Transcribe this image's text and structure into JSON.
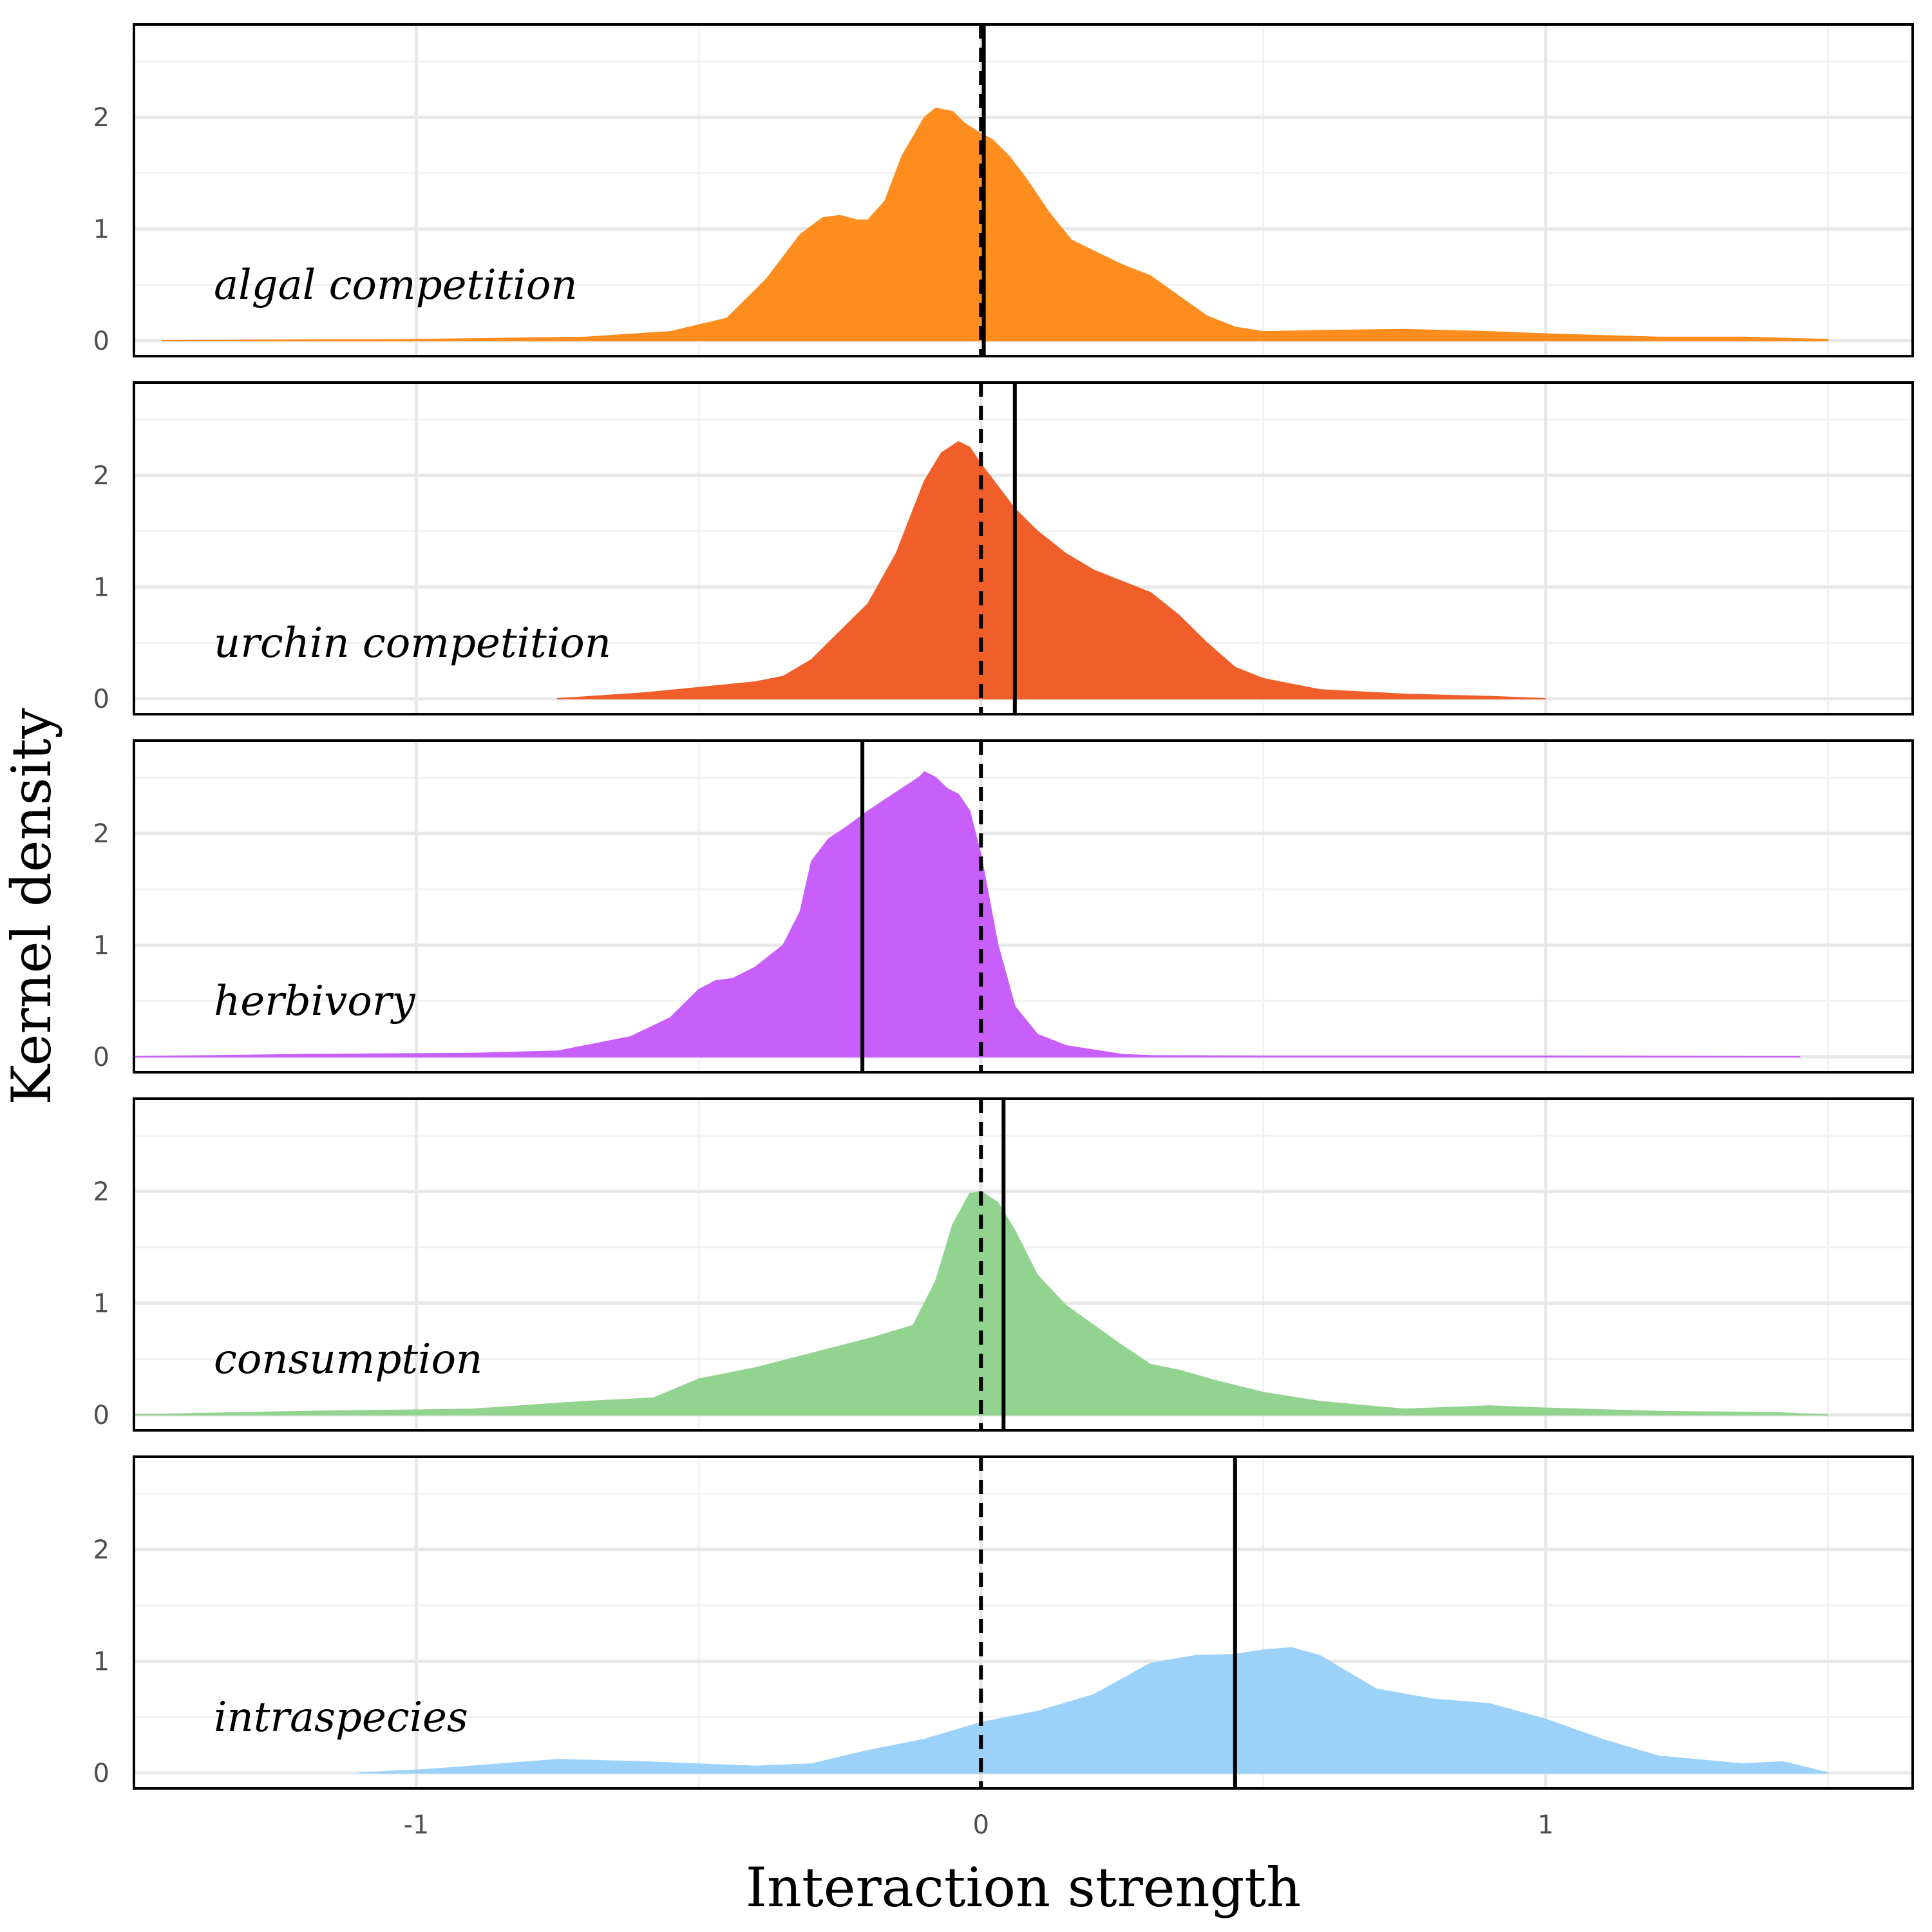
{
  "chart_data": {
    "type": "area",
    "xlabel": "Interaction strength",
    "ylabel": "Kernel density",
    "xlim": [
      -1.5,
      1.65
    ],
    "ylim": [
      0,
      2.75
    ],
    "x_ticks": [
      -1,
      0,
      1
    ],
    "x_tick_labels": [
      "-1",
      "0",
      "1"
    ],
    "y_ticks": [
      0,
      1,
      2
    ],
    "y_tick_labels": [
      "0",
      "1",
      "2"
    ],
    "grid": true,
    "reference_line": {
      "x": 0,
      "style": "dashed"
    },
    "panels": [
      {
        "name": "algal competition",
        "color": "#fd8d1f",
        "mean": 0.005,
        "x": [
          -1.45,
          -1.0,
          -0.7,
          -0.55,
          -0.45,
          -0.38,
          -0.32,
          -0.28,
          -0.25,
          -0.22,
          -0.2,
          -0.17,
          -0.14,
          -0.1,
          -0.08,
          -0.05,
          -0.03,
          0.0,
          0.02,
          0.05,
          0.08,
          0.12,
          0.16,
          0.2,
          0.25,
          0.3,
          0.35,
          0.4,
          0.45,
          0.5,
          0.6,
          0.75,
          0.9,
          1.0,
          1.2,
          1.35,
          1.5
        ],
        "y": [
          0.0,
          0.01,
          0.03,
          0.08,
          0.2,
          0.55,
          0.95,
          1.1,
          1.12,
          1.08,
          1.08,
          1.25,
          1.65,
          2.0,
          2.08,
          2.05,
          1.95,
          1.85,
          1.8,
          1.65,
          1.45,
          1.15,
          0.9,
          0.8,
          0.68,
          0.58,
          0.4,
          0.22,
          0.12,
          0.08,
          0.09,
          0.1,
          0.08,
          0.06,
          0.03,
          0.03,
          0.01
        ]
      },
      {
        "name": "urchin competition",
        "color": "#f05f2a",
        "mean": 0.06,
        "x": [
          -0.75,
          -0.6,
          -0.5,
          -0.4,
          -0.35,
          -0.3,
          -0.25,
          -0.2,
          -0.15,
          -0.1,
          -0.07,
          -0.04,
          -0.02,
          0.0,
          0.03,
          0.06,
          0.1,
          0.15,
          0.2,
          0.3,
          0.35,
          0.4,
          0.45,
          0.5,
          0.6,
          0.75,
          0.9,
          1.0
        ],
        "y": [
          0.0,
          0.05,
          0.1,
          0.15,
          0.2,
          0.35,
          0.6,
          0.85,
          1.3,
          1.95,
          2.2,
          2.3,
          2.25,
          2.1,
          1.9,
          1.7,
          1.5,
          1.3,
          1.15,
          0.95,
          0.75,
          0.5,
          0.28,
          0.18,
          0.08,
          0.04,
          0.02,
          0.0
        ]
      },
      {
        "name": "herbivory",
        "color": "#c85ffb",
        "mean": -0.21,
        "x": [
          -1.5,
          -1.2,
          -0.9,
          -0.75,
          -0.68,
          -0.62,
          -0.55,
          -0.5,
          -0.47,
          -0.44,
          -0.4,
          -0.35,
          -0.32,
          -0.3,
          -0.27,
          -0.24,
          -0.2,
          -0.17,
          -0.14,
          -0.11,
          -0.1,
          -0.08,
          -0.06,
          -0.04,
          -0.02,
          0.0,
          0.03,
          0.06,
          0.1,
          0.15,
          0.25,
          0.3,
          0.5,
          1.0,
          1.45
        ],
        "y": [
          0.0,
          0.02,
          0.03,
          0.05,
          0.12,
          0.18,
          0.35,
          0.6,
          0.68,
          0.7,
          0.8,
          1.0,
          1.3,
          1.75,
          1.95,
          2.05,
          2.2,
          2.3,
          2.4,
          2.5,
          2.55,
          2.5,
          2.4,
          2.35,
          2.2,
          1.8,
          1.0,
          0.45,
          0.2,
          0.1,
          0.02,
          0.01,
          0.005,
          0.005,
          0.0
        ]
      },
      {
        "name": "consumption",
        "color": "#93d390",
        "mean": 0.04,
        "x": [
          -1.5,
          -1.2,
          -0.9,
          -0.7,
          -0.58,
          -0.5,
          -0.4,
          -0.3,
          -0.2,
          -0.12,
          -0.08,
          -0.05,
          -0.02,
          0.0,
          0.03,
          0.06,
          0.1,
          0.15,
          0.2,
          0.25,
          0.3,
          0.35,
          0.42,
          0.5,
          0.6,
          0.75,
          0.9,
          1.0,
          1.2,
          1.4,
          1.5
        ],
        "y": [
          0.0,
          0.03,
          0.05,
          0.12,
          0.15,
          0.32,
          0.42,
          0.55,
          0.68,
          0.8,
          1.2,
          1.7,
          1.98,
          2.0,
          1.9,
          1.65,
          1.25,
          0.98,
          0.8,
          0.62,
          0.45,
          0.4,
          0.3,
          0.2,
          0.12,
          0.05,
          0.08,
          0.06,
          0.03,
          0.02,
          0.0
        ]
      },
      {
        "name": "intraspecies",
        "color": "#9cd2fa",
        "mean": 0.45,
        "x": [
          -1.1,
          -0.98,
          -0.85,
          -0.75,
          -0.6,
          -0.4,
          -0.3,
          -0.2,
          -0.1,
          0.0,
          0.1,
          0.2,
          0.3,
          0.38,
          0.45,
          0.5,
          0.55,
          0.6,
          0.7,
          0.8,
          0.9,
          1.0,
          1.1,
          1.2,
          1.35,
          1.42,
          1.5
        ],
        "y": [
          0.0,
          0.03,
          0.08,
          0.12,
          0.1,
          0.06,
          0.08,
          0.2,
          0.3,
          0.45,
          0.55,
          0.7,
          0.98,
          1.05,
          1.06,
          1.1,
          1.12,
          1.05,
          0.75,
          0.66,
          0.62,
          0.48,
          0.3,
          0.15,
          0.08,
          0.1,
          0.0
        ]
      }
    ]
  }
}
